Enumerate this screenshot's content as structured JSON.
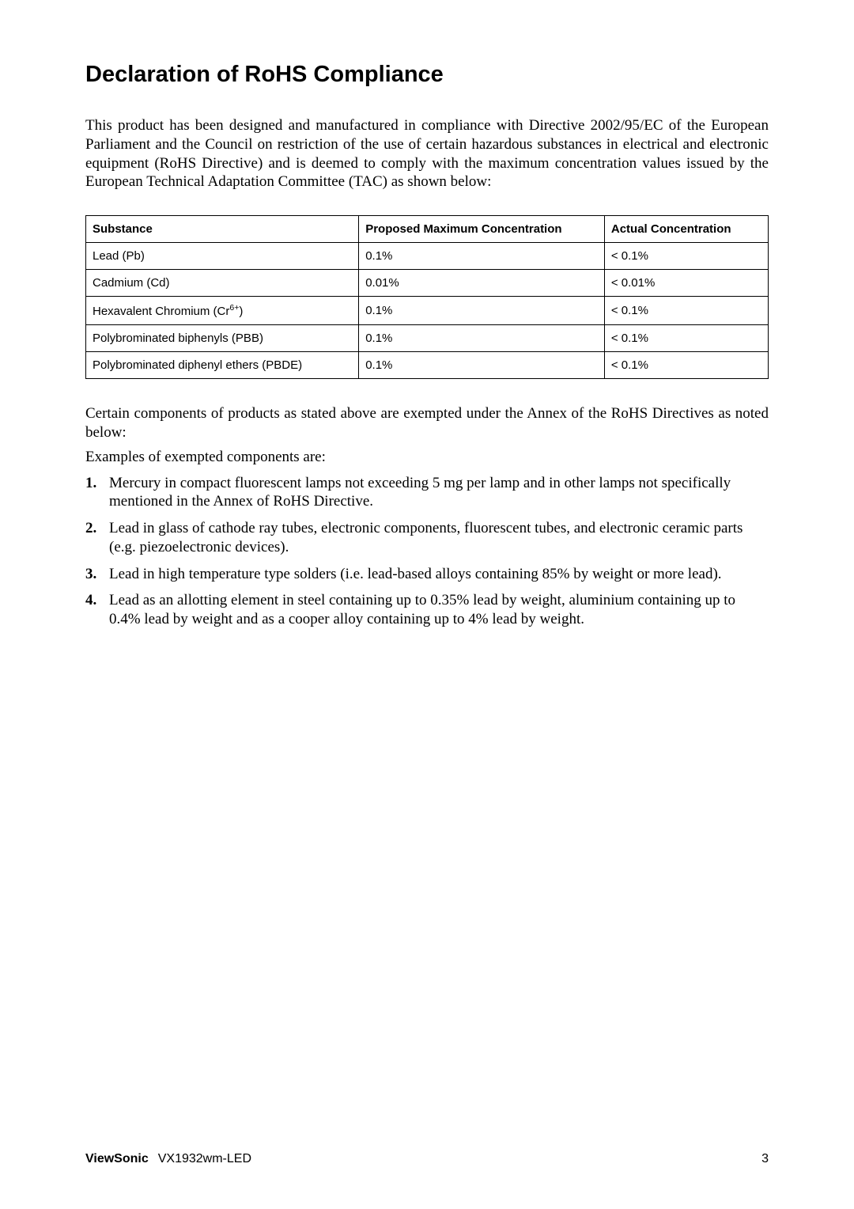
{
  "title": "Declaration of RoHS Compliance",
  "intro": "This product has been designed and manufactured in compliance with Directive 2002/95/EC of the European Parliament and the Council on restriction of the use of certain hazardous substances in electrical and electronic equipment (RoHS Directive) and is deemed to comply with the maximum concentration values issued by the European Technical Adaptation Committee (TAC) as shown below:",
  "table": {
    "headers": [
      "Substance",
      "Proposed Maximum Concentration",
      "Actual Concentration"
    ],
    "rows": [
      [
        "Lead (Pb)",
        "0.1%",
        "< 0.1%"
      ],
      [
        "Cadmium (Cd)",
        "0.01%",
        "< 0.01%"
      ],
      [
        "__CR6__",
        "0.1%",
        "< 0.1%"
      ],
      [
        "Polybrominated biphenyls (PBB)",
        "0.1%",
        "< 0.1%"
      ],
      [
        "Polybrominated diphenyl ethers (PBDE)",
        "0.1%",
        "< 0.1%"
      ]
    ],
    "cr6_label_prefix": "Hexavalent Chromium (Cr",
    "cr6_label_sup": "6+",
    "cr6_label_suffix": ")"
  },
  "para2": "Certain components of products as stated above are exempted under the Annex of the RoHS Directives as noted below:",
  "examples_line": "Examples of exempted components are:",
  "list": [
    "Mercury in compact fluorescent lamps not exceeding 5 mg per lamp and in other lamps not specifically mentioned in the Annex of RoHS Directive.",
    "Lead in glass of cathode ray tubes, electronic components, fluorescent tubes, and electronic ceramic parts (e.g. piezoelectronic devices).",
    "Lead in high temperature type solders (i.e. lead-based alloys containing 85% by weight or more lead).",
    "Lead as an allotting element in steel containing up to 0.35% lead by weight, aluminium containing up to 0.4% lead by weight and as a cooper alloy containing up to 4% lead by weight."
  ],
  "list_numbers": [
    "1.",
    "2.",
    "3.",
    "4."
  ],
  "footer": {
    "brand": "ViewSonic",
    "model": "VX1932wm-LED",
    "page": "3"
  }
}
